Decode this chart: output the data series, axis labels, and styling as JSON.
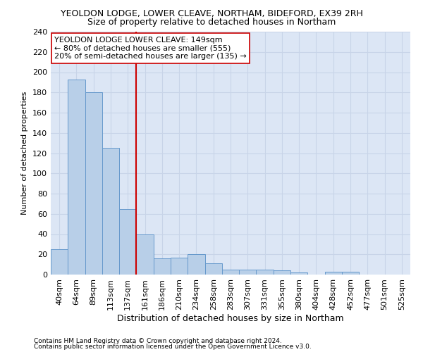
{
  "title": "YEOLDON LODGE, LOWER CLEAVE, NORTHAM, BIDEFORD, EX39 2RH",
  "subtitle": "Size of property relative to detached houses in Northam",
  "xlabel": "Distribution of detached houses by size in Northam",
  "ylabel": "Number of detached properties",
  "footnote1": "Contains HM Land Registry data © Crown copyright and database right 2024.",
  "footnote2": "Contains public sector information licensed under the Open Government Licence v3.0.",
  "bar_labels": [
    "40sqm",
    "64sqm",
    "89sqm",
    "113sqm",
    "137sqm",
    "161sqm",
    "186sqm",
    "210sqm",
    "234sqm",
    "258sqm",
    "283sqm",
    "307sqm",
    "331sqm",
    "355sqm",
    "380sqm",
    "404sqm",
    "428sqm",
    "452sqm",
    "477sqm",
    "501sqm",
    "525sqm"
  ],
  "bar_values": [
    25,
    193,
    180,
    125,
    65,
    40,
    16,
    17,
    20,
    11,
    5,
    5,
    5,
    4,
    2,
    0,
    3,
    3,
    0,
    0,
    0
  ],
  "bar_color": "#b8cfe8",
  "bar_edgecolor": "#6699cc",
  "grid_color": "#c8d4e8",
  "background_color": "#dce6f5",
  "vline_x_idx": 4.5,
  "vline_color": "#cc0000",
  "annotation_text": "YEOLDON LODGE LOWER CLEAVE: 149sqm\n← 80% of detached houses are smaller (555)\n20% of semi-detached houses are larger (135) →",
  "annotation_box_facecolor": "#ffffff",
  "annotation_box_edgecolor": "#cc0000",
  "ylim": [
    0,
    240
  ],
  "yticks": [
    0,
    20,
    40,
    60,
    80,
    100,
    120,
    140,
    160,
    180,
    200,
    220,
    240
  ],
  "title_fontsize": 9,
  "subtitle_fontsize": 9,
  "xlabel_fontsize": 9,
  "ylabel_fontsize": 8,
  "tick_fontsize": 8,
  "annot_fontsize": 8,
  "footnote_fontsize": 6.5
}
